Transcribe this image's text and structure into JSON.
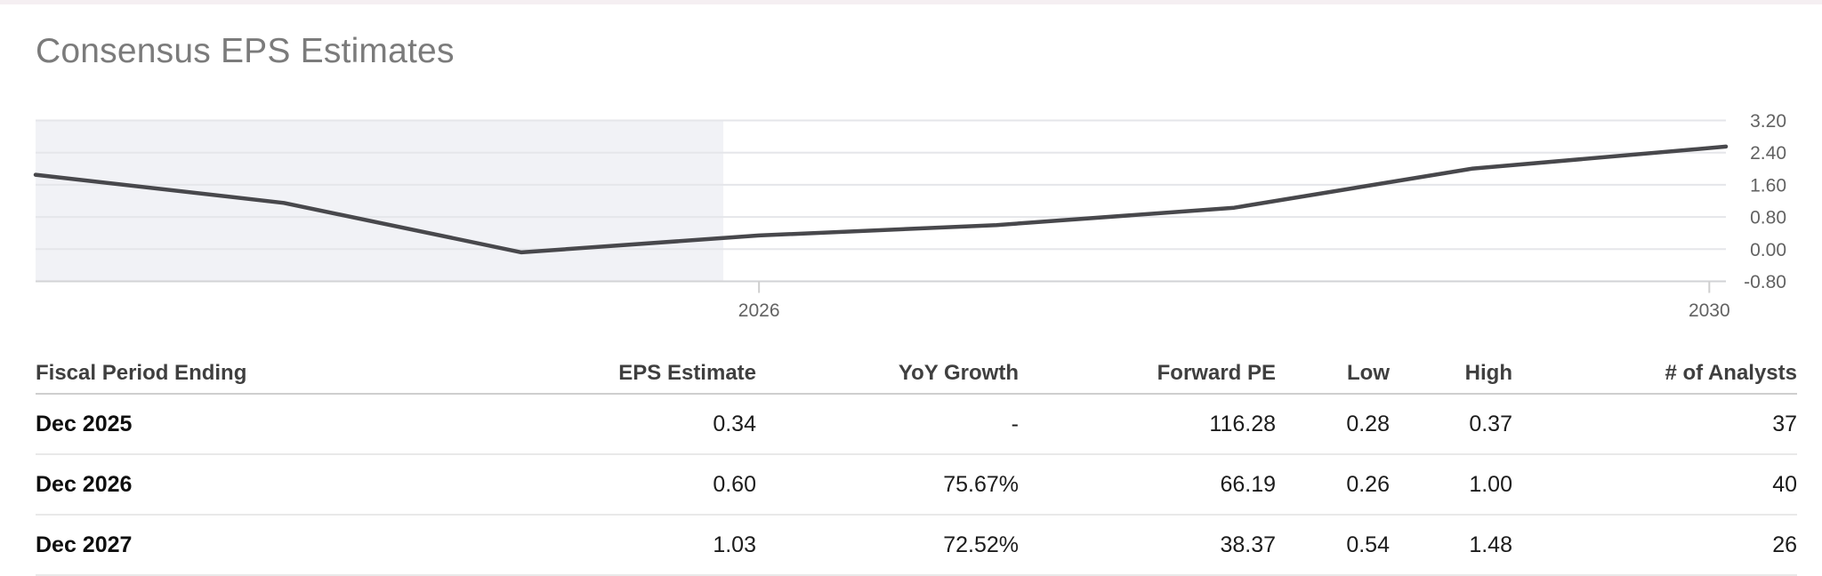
{
  "page": {
    "title": "Consensus EPS Estimates",
    "colors": {
      "top_strip": "#f5eff2",
      "background": "#ffffff",
      "title_text": "#7b7b7b"
    }
  },
  "chart_data": {
    "type": "line",
    "title": "Consensus EPS Estimates",
    "xlabel": "",
    "ylabel": "",
    "xlim": [
      2022.955,
      2030.07
    ],
    "ylim": [
      -0.8,
      3.2
    ],
    "grid": true,
    "legend": "none",
    "x_ticks": [
      "2026",
      "2030"
    ],
    "y_ticks": [
      "3.20",
      "2.40",
      "1.60",
      "0.80",
      "0.00",
      "-0.80"
    ],
    "shaded_past_until": 2025.85,
    "series": [
      {
        "name": "Consensus EPS",
        "points": [
          {
            "x": 2022.955,
            "y": 1.85
          },
          {
            "x": 2024.0,
            "y": 1.15
          },
          {
            "x": 2025.0,
            "y": -0.08
          },
          {
            "x": 2026.0,
            "y": 0.34
          },
          {
            "x": 2027.0,
            "y": 0.6
          },
          {
            "x": 2028.0,
            "y": 1.03
          },
          {
            "x": 2029.0,
            "y": 2.0
          },
          {
            "x": 2030.07,
            "y": 2.55
          }
        ]
      }
    ],
    "colors": {
      "line": "#48484c",
      "grid": "#e5e6ea",
      "axis": "#d2d3d6",
      "tick": "#cfcfcf",
      "tick_text": "#626262",
      "past_region": "#f1f2f6"
    }
  },
  "table": {
    "columns": [
      {
        "label": "Fiscal Period Ending",
        "align": "left"
      },
      {
        "label": "EPS Estimate",
        "align": "right"
      },
      {
        "label": "YoY Growth",
        "align": "right"
      },
      {
        "label": "Forward PE",
        "align": "right"
      },
      {
        "label": "Low",
        "align": "right"
      },
      {
        "label": "High",
        "align": "right"
      },
      {
        "label": "# of Analysts",
        "align": "right"
      }
    ],
    "rows": [
      {
        "period": "Dec 2025",
        "eps": "0.34",
        "yoy": "-",
        "forward_pe": "116.28",
        "low": "0.28",
        "high": "0.37",
        "analysts": "37"
      },
      {
        "period": "Dec 2026",
        "eps": "0.60",
        "yoy": "75.67%",
        "forward_pe": "66.19",
        "low": "0.26",
        "high": "1.00",
        "analysts": "40"
      },
      {
        "period": "Dec 2027",
        "eps": "1.03",
        "yoy": "72.52%",
        "forward_pe": "38.37",
        "low": "0.54",
        "high": "1.48",
        "analysts": "26"
      }
    ]
  }
}
